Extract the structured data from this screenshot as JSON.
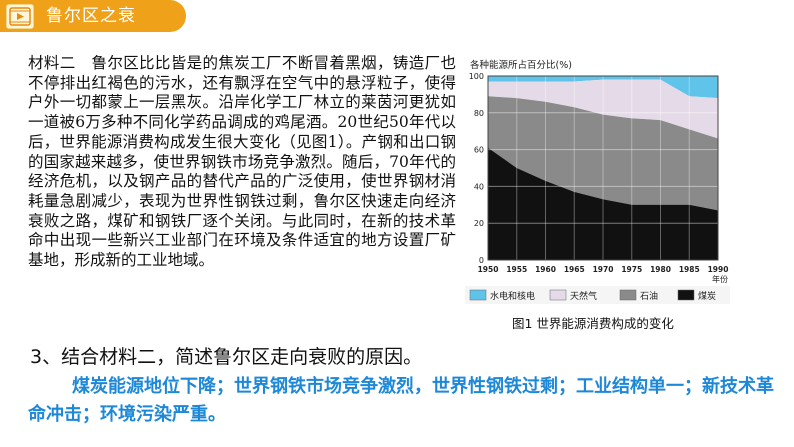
{
  "header": {
    "title": "鲁尔区之衰",
    "icon": "play-icon",
    "color": "#f0a11a"
  },
  "material": {
    "text": "材料二　鲁尔区比比皆是的焦炭工厂不断冒着黑烟，铸造厂也不停排出红褐色的污水，还有飘浮在空气中的悬浮粒子，使得户外一切都蒙上一层黑灰。沿岸化学工厂林立的莱茵河更犹如一道被6万多种不同化学药品调成的鸡尾酒。20世纪50年代以后，世界能源消费构成发生很大变化（见图1）。产钢和出口钢的国家越来越多，使世界钢铁市场竞争激烈。随后，70年代的经济危机，以及钢产品的替代产品的广泛使用，使世界钢材消耗量急剧减少，表现为世界性钢铁过剩，鲁尔区快速走向经济衰败之路，煤矿和钢铁厂逐个关闭。与此同时，在新的技术革命中出现一些新兴工业部门在环境及条件适宜的地方设置厂矿基地，形成新的工业地域。"
  },
  "question": {
    "text": "3、结合材料二，简述鲁尔区走向衰败的原因。"
  },
  "answer": {
    "text": "煤炭能源地位下降；世界钢铁市场竞争激烈，世界性钢铁过剩；工业结构单一；新技术革命冲击；环境污染严重。",
    "color": "#1e88d8"
  },
  "chart_data": {
    "type": "area",
    "ylabel": "各种能源所占百分比(%)",
    "xlabel": "年份",
    "caption": "图1 世界能源消费构成的变化",
    "x": [
      1950,
      1955,
      1960,
      1965,
      1970,
      1975,
      1980,
      1985,
      1990
    ],
    "ylim": [
      0,
      100
    ],
    "yticks": [
      0,
      20,
      40,
      60,
      80,
      100
    ],
    "grid": true,
    "legend_position": "bottom",
    "series": [
      {
        "name": "煤炭",
        "color": "#111111",
        "values": [
          61,
          50,
          43,
          37,
          33,
          30,
          30,
          30,
          27
        ]
      },
      {
        "name": "石油",
        "color": "#8a8a8a",
        "values": [
          89,
          88,
          86,
          83,
          79,
          77,
          76,
          71,
          66
        ]
      },
      {
        "name": "天然气",
        "color": "#e5dbe8",
        "values": [
          97,
          97,
          97,
          97,
          98,
          98,
          98,
          89,
          88
        ]
      },
      {
        "name": "水电和核电",
        "color": "#5fc3ea",
        "values": [
          100,
          100,
          100,
          100,
          100,
          100,
          100,
          100,
          100
        ]
      }
    ],
    "legend": [
      {
        "name": "水电和核电",
        "color": "#5fc3ea"
      },
      {
        "name": "天然气",
        "color": "#e5dbe8"
      },
      {
        "name": "石油",
        "color": "#8a8a8a"
      },
      {
        "name": "煤炭",
        "color": "#111111"
      }
    ]
  }
}
